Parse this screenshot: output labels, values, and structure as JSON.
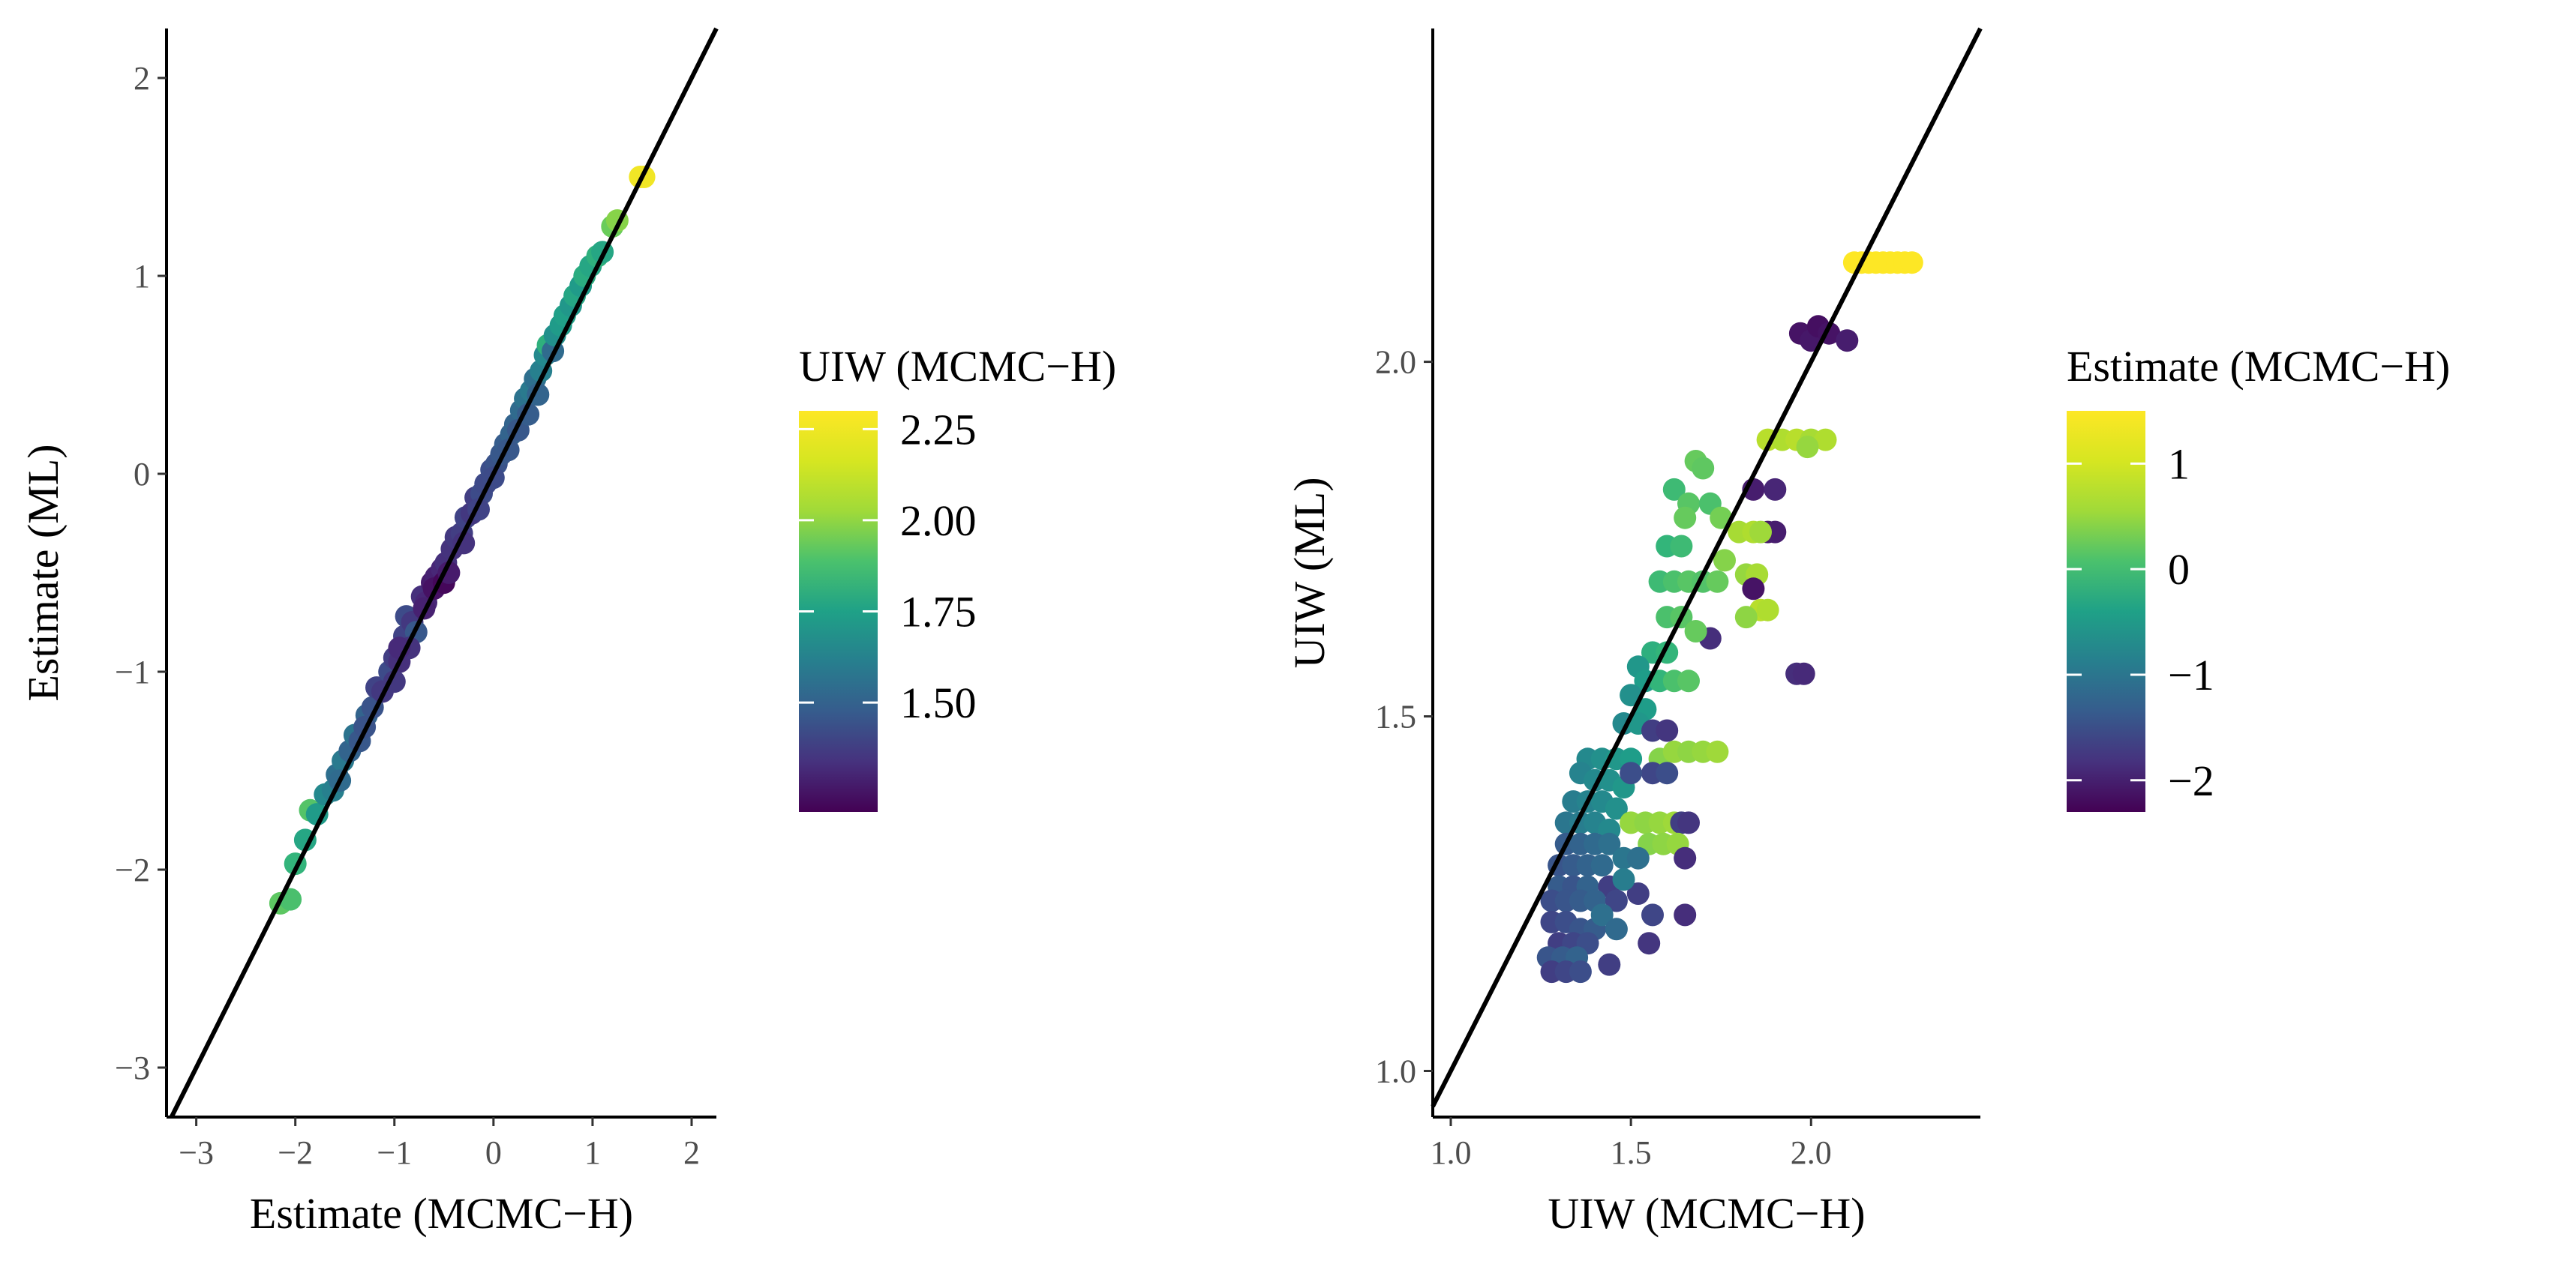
{
  "chart_data": [
    {
      "type": "scatter",
      "xlabel": "Estimate (MCMC−H)",
      "ylabel": "Estimate (ML)",
      "xlim": [
        -3.3,
        2.25
      ],
      "ylim": [
        -3.25,
        2.25
      ],
      "xticks": [
        -3,
        -2,
        -1,
        0,
        1,
        2
      ],
      "yticks": [
        -3,
        -2,
        -1,
        0,
        1,
        2
      ],
      "xtick_labels": [
        "−3",
        "−2",
        "−1",
        "0",
        "1",
        "2"
      ],
      "ytick_labels": [
        "−3",
        "−2",
        "−1",
        "0",
        "1",
        "2"
      ],
      "reference_line": "y = x",
      "grid": false,
      "legend": {
        "title": "UIW (MCMC−H)",
        "type": "colorbar",
        "colormap": "viridis",
        "range": [
          1.2,
          2.3
        ],
        "ticks": [
          1.5,
          1.75,
          2.0,
          2.25
        ],
        "tick_labels": [
          "1.50",
          "1.75",
          "2.00",
          "2.25"
        ],
        "placement": "right"
      },
      "points": [
        [
          -2.15,
          -2.17,
          2.02
        ],
        [
          -2.05,
          -2.15,
          1.98
        ],
        [
          -2.0,
          -1.97,
          1.92
        ],
        [
          -1.9,
          -1.85,
          1.85
        ],
        [
          -1.85,
          -1.7,
          2.0
        ],
        [
          -1.78,
          -1.72,
          1.8
        ],
        [
          -1.7,
          -1.62,
          1.72
        ],
        [
          -1.62,
          -1.6,
          1.68
        ],
        [
          -1.58,
          -1.52,
          1.6
        ],
        [
          -1.52,
          -1.45,
          1.65
        ],
        [
          -1.45,
          -1.4,
          1.55
        ],
        [
          -1.4,
          -1.32,
          1.62
        ],
        [
          -1.35,
          -1.35,
          1.5
        ],
        [
          -1.28,
          -1.22,
          1.55
        ],
        [
          -1.22,
          -1.18,
          1.48
        ],
        [
          -1.18,
          -1.08,
          1.42
        ],
        [
          -1.12,
          -1.1,
          1.38
        ],
        [
          -1.05,
          -1.0,
          1.45
        ],
        [
          -1.0,
          -0.93,
          1.4
        ],
        [
          -0.95,
          -0.95,
          1.35
        ],
        [
          -0.9,
          -0.82,
          1.42
        ],
        [
          -0.88,
          -0.72,
          1.45
        ],
        [
          -0.82,
          -0.75,
          1.38
        ],
        [
          -0.78,
          -0.8,
          1.5
        ],
        [
          -0.72,
          -0.62,
          1.35
        ],
        [
          -0.68,
          -0.65,
          1.32
        ],
        [
          -0.62,
          -0.55,
          1.28
        ],
        [
          -0.58,
          -0.52,
          1.3
        ],
        [
          -0.52,
          -0.48,
          1.32
        ],
        [
          -0.48,
          -0.45,
          1.35
        ],
        [
          -0.42,
          -0.38,
          1.36
        ],
        [
          -0.38,
          -0.32,
          1.38
        ],
        [
          -0.32,
          -0.3,
          1.4
        ],
        [
          -0.28,
          -0.22,
          1.42
        ],
        [
          -0.22,
          -0.2,
          1.38
        ],
        [
          -0.18,
          -0.12,
          1.4
        ],
        [
          -0.12,
          -0.1,
          1.45
        ],
        [
          -0.08,
          -0.05,
          1.44
        ],
        [
          -0.02,
          0.02,
          1.46
        ],
        [
          0.03,
          0.05,
          1.48
        ],
        [
          0.08,
          0.1,
          1.5
        ],
        [
          0.12,
          0.15,
          1.52
        ],
        [
          0.18,
          0.2,
          1.55
        ],
        [
          0.22,
          0.25,
          1.55
        ],
        [
          0.28,
          0.32,
          1.58
        ],
        [
          0.32,
          0.38,
          1.62
        ],
        [
          0.38,
          0.42,
          1.65
        ],
        [
          0.42,
          0.48,
          1.6
        ],
        [
          0.48,
          0.52,
          1.68
        ],
        [
          0.52,
          0.6,
          1.72
        ],
        [
          0.55,
          0.65,
          1.9
        ],
        [
          0.6,
          0.62,
          1.58
        ],
        [
          0.62,
          0.7,
          1.75
        ],
        [
          0.68,
          0.75,
          1.8
        ],
        [
          0.72,
          0.8,
          1.82
        ],
        [
          0.78,
          0.85,
          1.78
        ],
        [
          0.82,
          0.9,
          1.85
        ],
        [
          0.88,
          0.95,
          1.8
        ],
        [
          0.92,
          1.0,
          1.88
        ],
        [
          0.98,
          1.05,
          1.85
        ],
        [
          1.05,
          1.1,
          1.9
        ],
        [
          1.1,
          1.12,
          1.85
        ],
        [
          1.2,
          1.25,
          2.05
        ],
        [
          1.25,
          1.28,
          2.1
        ],
        [
          1.48,
          1.5,
          2.28
        ],
        [
          1.52,
          1.5,
          2.28
        ],
        [
          -0.6,
          -0.58,
          1.25
        ],
        [
          -0.5,
          -0.55,
          1.22
        ],
        [
          -0.45,
          -0.5,
          1.28
        ],
        [
          -0.7,
          -0.68,
          1.3
        ],
        [
          -0.3,
          -0.35,
          1.36
        ],
        [
          -0.15,
          -0.18,
          1.42
        ],
        [
          0.0,
          -0.02,
          1.45
        ],
        [
          0.15,
          0.12,
          1.5
        ],
        [
          0.25,
          0.22,
          1.5
        ],
        [
          0.35,
          0.3,
          1.52
        ],
        [
          0.45,
          0.4,
          1.55
        ],
        [
          -1.0,
          -1.05,
          1.38
        ],
        [
          -0.85,
          -0.88,
          1.36
        ],
        [
          -1.55,
          -1.55,
          1.58
        ],
        [
          -1.3,
          -1.28,
          1.48
        ],
        [
          -0.95,
          -0.88,
          1.33
        ]
      ]
    },
    {
      "type": "scatter",
      "xlabel": "UIW (MCMC−H)",
      "ylabel": "UIW (ML)",
      "xlim": [
        0.95,
        2.47
      ],
      "ylim": [
        0.935,
        2.47
      ],
      "xticks": [
        1.0,
        1.5,
        2.0
      ],
      "yticks": [
        1.0,
        1.5,
        2.0
      ],
      "xtick_labels": [
        "1.0",
        "1.5",
        "2.0"
      ],
      "ytick_labels": [
        "1.0",
        "1.5",
        "2.0"
      ],
      "reference_line": "y = x",
      "grid": false,
      "legend": {
        "title": "Estimate (MCMC−H)",
        "type": "colorbar",
        "colormap": "viridis",
        "range": [
          -2.3,
          1.5
        ],
        "ticks": [
          -2,
          -1,
          0,
          1
        ],
        "tick_labels": [
          "−2",
          "−1",
          "0",
          "1"
        ],
        "placement": "right"
      },
      "points": [
        [
          2.12,
          2.14,
          1.5
        ],
        [
          2.14,
          2.14,
          1.5
        ],
        [
          2.16,
          2.14,
          1.5
        ],
        [
          2.18,
          2.14,
          1.5
        ],
        [
          2.2,
          2.14,
          1.5
        ],
        [
          2.22,
          2.14,
          1.5
        ],
        [
          2.24,
          2.14,
          1.5
        ],
        [
          2.26,
          2.14,
          1.5
        ],
        [
          2.28,
          2.14,
          1.5
        ],
        [
          1.97,
          2.04,
          -2.1
        ],
        [
          2.0,
          2.03,
          -2.05
        ],
        [
          2.02,
          2.05,
          -2.15
        ],
        [
          2.05,
          2.04,
          -2.1
        ],
        [
          2.1,
          2.03,
          -2.0
        ],
        [
          1.88,
          1.89,
          1.1
        ],
        [
          1.92,
          1.89,
          1.05
        ],
        [
          1.96,
          1.89,
          1.1
        ],
        [
          2.0,
          1.89,
          1.0
        ],
        [
          2.04,
          1.89,
          1.05
        ],
        [
          1.99,
          1.88,
          0.9
        ],
        [
          1.84,
          1.82,
          -2.0
        ],
        [
          1.9,
          1.82,
          -1.9
        ],
        [
          1.88,
          1.76,
          -2.05
        ],
        [
          1.9,
          1.76,
          -2.0
        ],
        [
          1.8,
          1.76,
          1.0
        ],
        [
          1.84,
          1.76,
          1.05
        ],
        [
          1.86,
          1.76,
          0.95
        ],
        [
          1.82,
          1.7,
          0.9
        ],
        [
          1.85,
          1.7,
          1.0
        ],
        [
          1.86,
          1.65,
          1.1
        ],
        [
          1.88,
          1.65,
          1.05
        ],
        [
          1.84,
          1.68,
          -2.1
        ],
        [
          1.82,
          1.64,
          0.85
        ],
        [
          1.96,
          1.56,
          -1.8
        ],
        [
          1.98,
          1.56,
          -1.85
        ],
        [
          1.72,
          1.61,
          -1.8
        ],
        [
          1.68,
          1.86,
          0.6
        ],
        [
          1.7,
          1.85,
          0.55
        ],
        [
          1.62,
          1.82,
          0.3
        ],
        [
          1.66,
          1.8,
          0.5
        ],
        [
          1.72,
          1.8,
          0.4
        ],
        [
          1.65,
          1.78,
          0.6
        ],
        [
          1.75,
          1.78,
          0.7
        ],
        [
          1.6,
          1.74,
          0.2
        ],
        [
          1.64,
          1.74,
          0.3
        ],
        [
          1.76,
          1.72,
          0.8
        ],
        [
          1.58,
          1.69,
          0.3
        ],
        [
          1.62,
          1.69,
          0.4
        ],
        [
          1.66,
          1.69,
          0.5
        ],
        [
          1.7,
          1.69,
          0.45
        ],
        [
          1.74,
          1.69,
          0.6
        ],
        [
          1.6,
          1.64,
          0.4
        ],
        [
          1.64,
          1.64,
          0.5
        ],
        [
          1.68,
          1.62,
          0.6
        ],
        [
          1.56,
          1.59,
          0.1
        ],
        [
          1.6,
          1.59,
          0.2
        ],
        [
          1.52,
          1.57,
          -0.3
        ],
        [
          1.54,
          1.55,
          -0.2
        ],
        [
          1.58,
          1.55,
          0.2
        ],
        [
          1.62,
          1.55,
          0.4
        ],
        [
          1.66,
          1.55,
          0.5
        ],
        [
          1.5,
          1.53,
          -0.4
        ],
        [
          1.54,
          1.51,
          -0.2
        ],
        [
          1.48,
          1.49,
          -0.5
        ],
        [
          1.52,
          1.49,
          -0.3
        ],
        [
          1.56,
          1.48,
          -1.6
        ],
        [
          1.6,
          1.48,
          -1.7
        ],
        [
          1.58,
          1.44,
          0.8
        ],
        [
          1.62,
          1.45,
          0.9
        ],
        [
          1.66,
          1.45,
          0.85
        ],
        [
          1.7,
          1.45,
          0.9
        ],
        [
          1.74,
          1.45,
          0.95
        ],
        [
          1.56,
          1.42,
          -1.5
        ],
        [
          1.6,
          1.42,
          -1.4
        ],
        [
          1.38,
          1.44,
          -0.5
        ],
        [
          1.42,
          1.44,
          -0.4
        ],
        [
          1.46,
          1.44,
          -0.3
        ],
        [
          1.5,
          1.44,
          -0.2
        ],
        [
          1.36,
          1.42,
          -0.6
        ],
        [
          1.4,
          1.41,
          -0.5
        ],
        [
          1.44,
          1.41,
          -0.4
        ],
        [
          1.48,
          1.4,
          -0.3
        ],
        [
          1.34,
          1.38,
          -0.7
        ],
        [
          1.38,
          1.38,
          -0.6
        ],
        [
          1.42,
          1.38,
          -0.5
        ],
        [
          1.46,
          1.37,
          -0.4
        ],
        [
          1.32,
          1.35,
          -0.8
        ],
        [
          1.36,
          1.35,
          -0.7
        ],
        [
          1.4,
          1.35,
          -0.6
        ],
        [
          1.44,
          1.34,
          -0.5
        ],
        [
          1.5,
          1.35,
          0.9
        ],
        [
          1.54,
          1.35,
          0.85
        ],
        [
          1.58,
          1.35,
          0.9
        ],
        [
          1.62,
          1.35,
          0.95
        ],
        [
          1.64,
          1.35,
          -1.6
        ],
        [
          1.66,
          1.35,
          -1.7
        ],
        [
          1.32,
          1.32,
          -1.2
        ],
        [
          1.36,
          1.32,
          -1.1
        ],
        [
          1.4,
          1.32,
          -1.0
        ],
        [
          1.44,
          1.32,
          -0.9
        ],
        [
          1.55,
          1.32,
          0.8
        ],
        [
          1.59,
          1.32,
          0.85
        ],
        [
          1.63,
          1.32,
          0.9
        ],
        [
          1.3,
          1.29,
          -1.3
        ],
        [
          1.34,
          1.29,
          -1.2
        ],
        [
          1.38,
          1.29,
          -1.1
        ],
        [
          1.42,
          1.29,
          -1.0
        ],
        [
          1.48,
          1.3,
          -0.8
        ],
        [
          1.52,
          1.3,
          -0.9
        ],
        [
          1.65,
          1.3,
          -1.8
        ],
        [
          1.3,
          1.26,
          -1.2
        ],
        [
          1.34,
          1.26,
          -1.3
        ],
        [
          1.38,
          1.26,
          -1.1
        ],
        [
          1.44,
          1.26,
          -1.6
        ],
        [
          1.28,
          1.24,
          -1.4
        ],
        [
          1.32,
          1.24,
          -1.3
        ],
        [
          1.36,
          1.24,
          -1.2
        ],
        [
          1.4,
          1.24,
          -1.1
        ],
        [
          1.46,
          1.24,
          -1.5
        ],
        [
          1.52,
          1.25,
          -1.6
        ],
        [
          1.56,
          1.22,
          -1.5
        ],
        [
          1.65,
          1.22,
          -1.8
        ],
        [
          1.28,
          1.21,
          -1.5
        ],
        [
          1.32,
          1.21,
          -1.4
        ],
        [
          1.36,
          1.2,
          -1.3
        ],
        [
          1.4,
          1.2,
          -1.2
        ],
        [
          1.3,
          1.18,
          -1.6
        ],
        [
          1.34,
          1.18,
          -1.5
        ],
        [
          1.38,
          1.18,
          -1.4
        ],
        [
          1.55,
          1.18,
          -1.7
        ],
        [
          1.27,
          1.16,
          -1.3
        ],
        [
          1.31,
          1.16,
          -1.2
        ],
        [
          1.35,
          1.16,
          -1.1
        ],
        [
          1.28,
          1.14,
          -1.6
        ],
        [
          1.32,
          1.14,
          -1.5
        ],
        [
          1.36,
          1.14,
          -1.4
        ],
        [
          1.44,
          1.15,
          -1.6
        ],
        [
          1.42,
          1.22,
          -0.9
        ],
        [
          1.46,
          1.2,
          -1.0
        ],
        [
          1.48,
          1.27,
          -0.7
        ],
        [
          1.5,
          1.42,
          -1.4
        ]
      ]
    }
  ]
}
